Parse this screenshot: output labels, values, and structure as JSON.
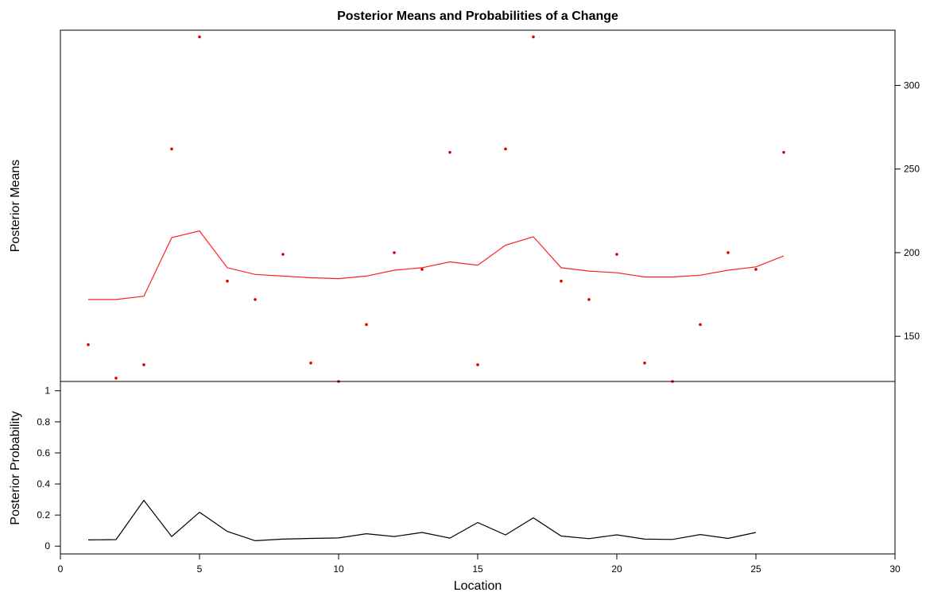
{
  "chart_data": [
    {
      "type": "line",
      "panel": "top",
      "title": "Posterior Means and Probabilities of a Change",
      "ylabel": "Posterior Means",
      "x": [
        1,
        2,
        3,
        4,
        5,
        6,
        7,
        8,
        9,
        10,
        11,
        12,
        13,
        14,
        15,
        16,
        17,
        18,
        19,
        20,
        21,
        22,
        23,
        24,
        25,
        26
      ],
      "observations": [
        145,
        125,
        133,
        262,
        329,
        183,
        172,
        199,
        134,
        123,
        157,
        200,
        190,
        260,
        133,
        262,
        329,
        183,
        172,
        199,
        134,
        123,
        157,
        200,
        190,
        260
      ],
      "posterior_means": [
        172,
        172,
        174,
        209,
        213,
        191,
        187,
        186,
        185,
        184.5,
        186,
        189.5,
        191,
        194.5,
        192.5,
        204.5,
        209.5,
        191,
        189,
        188,
        185.5,
        185.5,
        186.5,
        189.5,
        191.5,
        198
      ],
      "colors": {
        "observations": "#e00000",
        "posterior_means": "#ff2020"
      },
      "xlim": [
        0,
        30
      ],
      "ylim": [
        123,
        333
      ],
      "yticks": [
        150,
        200,
        250,
        300
      ],
      "yaxis_side": "right"
    },
    {
      "type": "line",
      "panel": "bottom",
      "ylabel": "Posterior Probability",
      "xlabel": "Location",
      "x": [
        1,
        2,
        3,
        4,
        5,
        6,
        7,
        8,
        9,
        10,
        11,
        12,
        13,
        14,
        15,
        16,
        17,
        18,
        19,
        20,
        21,
        22,
        23,
        24,
        25
      ],
      "values": [
        0.04,
        0.042,
        0.295,
        0.062,
        0.218,
        0.095,
        0.035,
        0.045,
        0.05,
        0.053,
        0.08,
        0.062,
        0.088,
        0.052,
        0.152,
        0.072,
        0.182,
        0.065,
        0.048,
        0.073,
        0.045,
        0.043,
        0.075,
        0.05,
        0.088
      ],
      "color": "#000000",
      "xlim": [
        0,
        30
      ],
      "ylim": [
        -0.05,
        1.06
      ],
      "yticks": [
        "0",
        "0.2",
        "0.4",
        "0.6",
        "0.8",
        "1"
      ],
      "xticks": [
        "0",
        "5",
        "10",
        "15",
        "20",
        "25",
        "30"
      ],
      "yaxis_side": "left"
    }
  ]
}
